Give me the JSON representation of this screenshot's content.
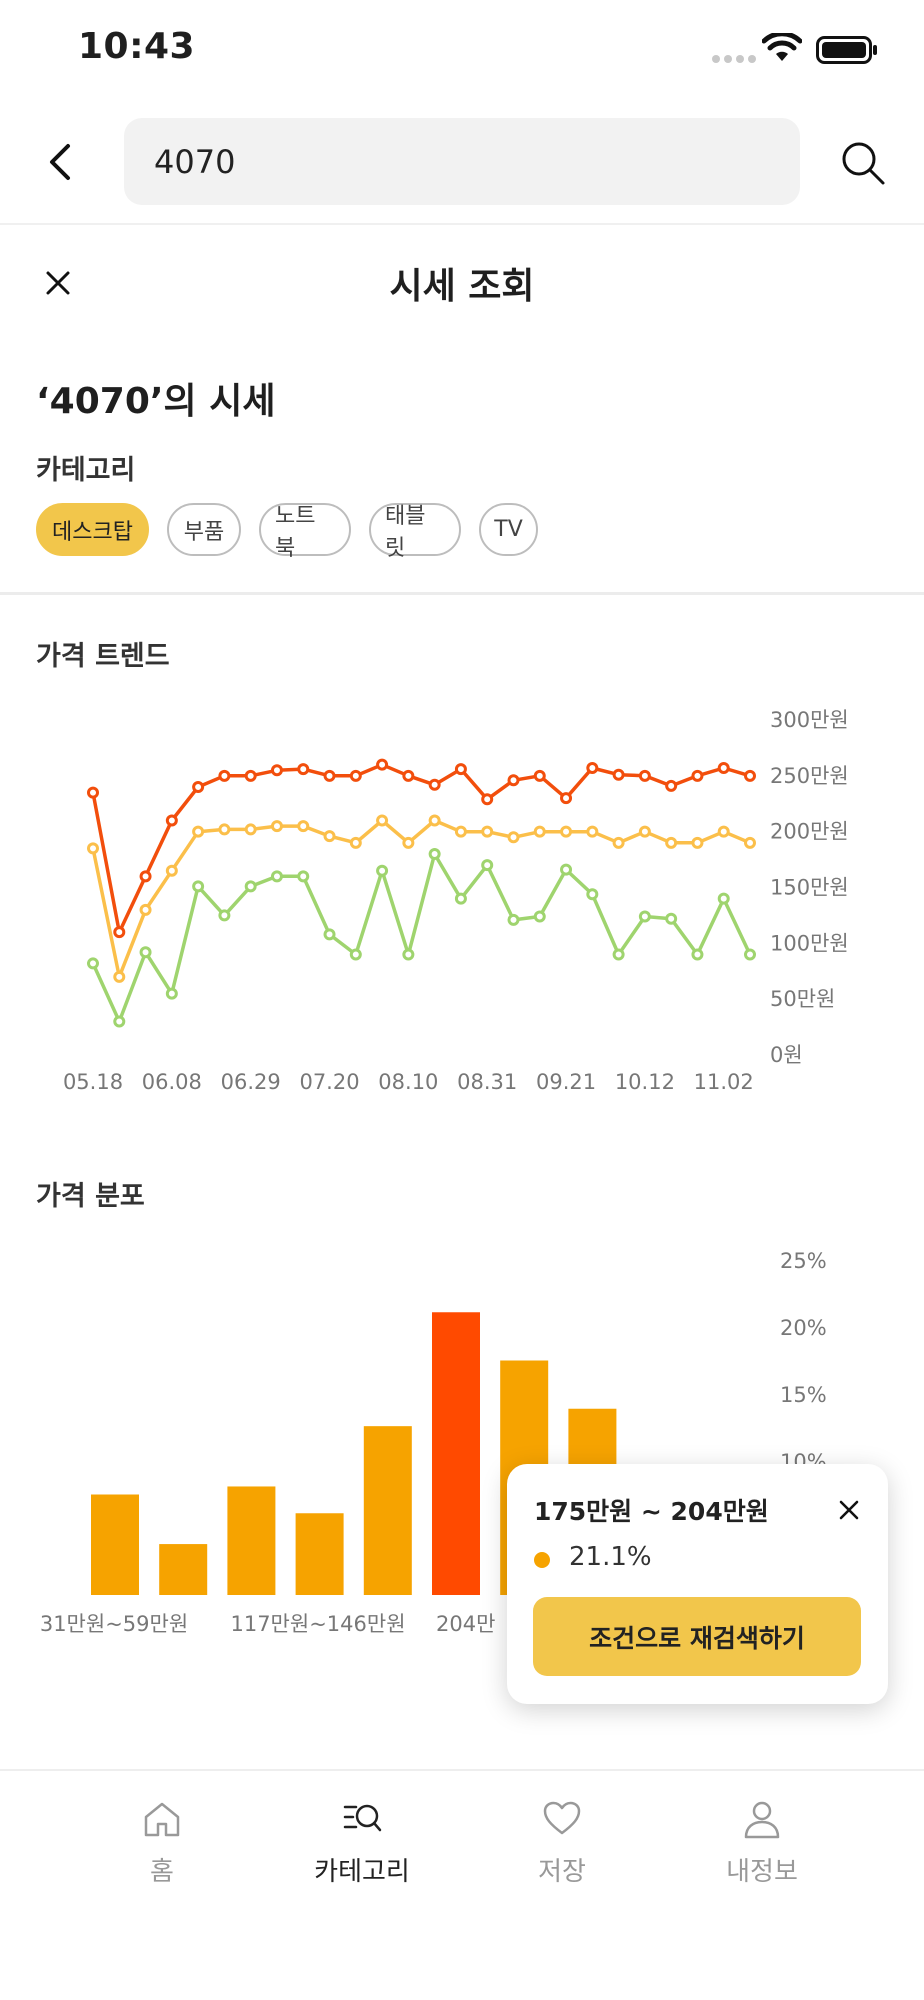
{
  "status_bar": {
    "time": "10:43"
  },
  "search": {
    "query": "4070"
  },
  "sheet": {
    "title": "시세 조회"
  },
  "price_title": "‘4070’의 시세",
  "category": {
    "label": "카테고리",
    "chips": [
      {
        "label": "데스크탑",
        "active": true
      },
      {
        "label": "부품",
        "active": false
      },
      {
        "label": "노트북",
        "active": false
      },
      {
        "label": "태블릿",
        "active": false
      },
      {
        "label": "TV",
        "active": false
      }
    ]
  },
  "trend": {
    "title": "가격 트렌드"
  },
  "distribution": {
    "title": "가격 분포"
  },
  "tooltip": {
    "range": "175만원 ~ 204만원",
    "percent": "21.1%",
    "button_label": "조건으로 재검색하기"
  },
  "tab_bar": {
    "items": [
      {
        "label": "홈",
        "icon": "home-icon",
        "active": false
      },
      {
        "label": "카테고리",
        "icon": "category-search-icon",
        "active": true
      },
      {
        "label": "저장",
        "icon": "heart-icon",
        "active": false
      },
      {
        "label": "내정보",
        "icon": "profile-icon",
        "active": false
      }
    ]
  },
  "colors": {
    "accent": "#f2c64b",
    "high_series": "#f24e0c",
    "mid_series": "#fbbf4a",
    "low_series": "#9fd46e",
    "bar": "#f6a300",
    "bar_highlight": "#ff4a00"
  },
  "chart_data": [
    {
      "type": "line",
      "title": "가격 트렌드",
      "x_tick_labels": [
        "05.18",
        "06.08",
        "06.29",
        "07.20",
        "08.10",
        "08.31",
        "09.21",
        "10.12",
        "11.02"
      ],
      "y_tick_labels": [
        "0원",
        "50만원",
        "100만원",
        "150만원",
        "200만원",
        "250만원",
        "300만원"
      ],
      "y_unit": "만원",
      "ylim": [
        0,
        300
      ],
      "y_axis_side": "right",
      "x_first": "05.18",
      "x_step_days": 7,
      "series": [
        {
          "values": [
            235,
            110,
            160,
            210,
            240,
            250,
            250,
            255,
            256,
            250,
            250,
            260,
            250,
            242,
            256,
            229,
            246,
            250,
            230,
            257,
            251,
            250,
            241,
            250,
            257,
            250
          ]
        },
        {
          "values": [
            185,
            70,
            130,
            165,
            200,
            202,
            202,
            205,
            205,
            196,
            190,
            210,
            190,
            210,
            200,
            200,
            195,
            200,
            200,
            200,
            190,
            200,
            190,
            190,
            200,
            190
          ]
        },
        {
          "values": [
            82,
            30,
            92,
            55,
            151,
            125,
            151,
            160,
            160,
            108,
            90,
            165,
            90,
            180,
            140,
            170,
            121,
            124,
            166,
            144,
            90,
            124,
            122,
            90,
            140,
            90
          ]
        }
      ]
    },
    {
      "type": "bar",
      "title": "가격 분포",
      "y_tick_labels": [
        "10%",
        "15%",
        "20%",
        "25%"
      ],
      "y_unit": "%",
      "ylim": [
        0,
        25
      ],
      "y_axis_side": "right",
      "x_tick_labels": [
        "31만원~59만원",
        "117만원~146만원",
        "204만"
      ],
      "values": [
        7.5,
        3.8,
        8.1,
        6.1,
        12.6,
        21.1,
        17.5,
        13.9
      ],
      "highlighted_index": 5
    }
  ]
}
